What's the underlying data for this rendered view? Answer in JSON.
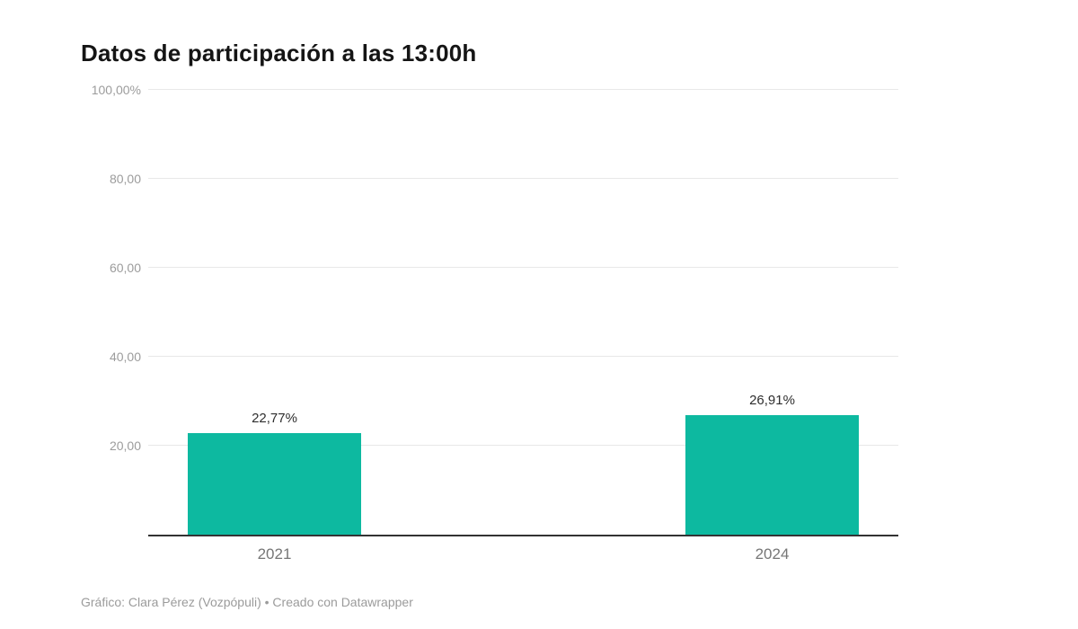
{
  "title": "Datos de participación a las 13:00h",
  "footer": "Gráfico: Clara Pérez (Vozpópuli) • Creado con Datawrapper",
  "colors": {
    "bar": "#0db9a0",
    "grid": "#e8e8e8",
    "axis": "#333333",
    "tick_label": "#9c9c9c",
    "category_label": "#767676",
    "value_label": "#2e2e2e",
    "title": "#151515",
    "footer": "#9b9b9b",
    "background": "#ffffff"
  },
  "chart_data": {
    "type": "bar",
    "title": "Datos de participación a las 13:00h",
    "categories": [
      "2021",
      "2024"
    ],
    "values": [
      22.77,
      26.91
    ],
    "value_labels": [
      "22,77%",
      "26,91%"
    ],
    "yticks": [
      {
        "value": 20,
        "label": "20,00"
      },
      {
        "value": 40,
        "label": "40,00"
      },
      {
        "value": 60,
        "label": "60,00"
      },
      {
        "value": 80,
        "label": "80,00"
      },
      {
        "value": 100,
        "label": "100,00%"
      }
    ],
    "ylim": [
      0,
      100
    ],
    "grid": true,
    "legend": "none",
    "xlabel": "",
    "ylabel": "",
    "annotation": "Gráfico: Clara Pérez (Vozpópuli) • Creado con Datawrapper"
  }
}
